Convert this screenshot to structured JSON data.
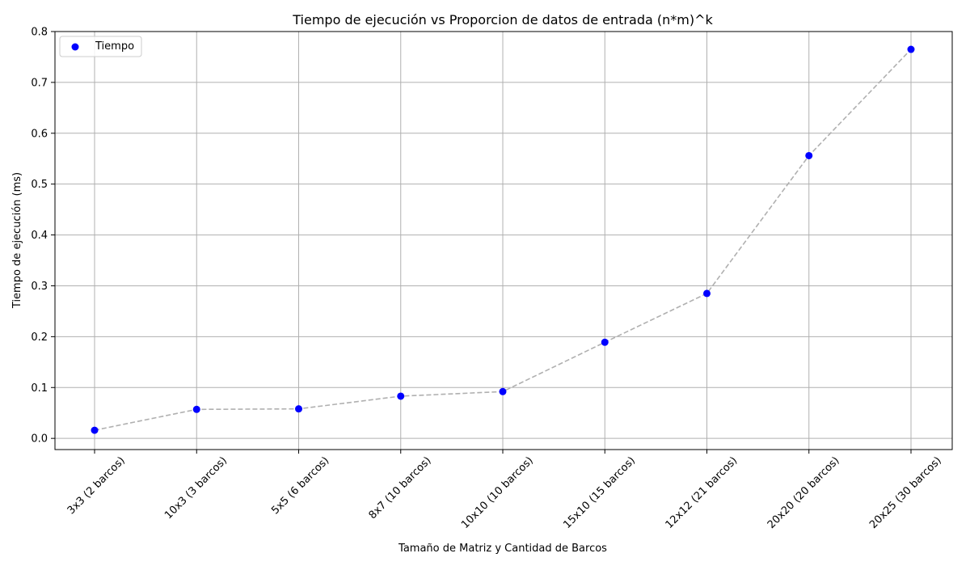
{
  "chart_data": {
    "type": "scatter",
    "title": "Tiempo de ejecución vs Proporcion de datos de entrada (n*m)^k",
    "xlabel": "Tamaño de Matriz y Cantidad de Barcos",
    "ylabel": "Tiempo de ejecución (ms)",
    "categories": [
      "3x3 (2 barcos)",
      "10x3 (3 barcos)",
      "5x5 (6 barcos)",
      "8x7 (10 barcos)",
      "10x10 (10 barcos)",
      "15x10 (15 barcos)",
      "12x12 (21 barcos)",
      "20x20 (20 barcos)",
      "20x25 (30 barcos)"
    ],
    "series": [
      {
        "name": "Tiempo",
        "values": [
          0.016,
          0.057,
          0.058,
          0.083,
          0.092,
          0.189,
          0.285,
          0.556,
          0.765
        ],
        "color": "#0000ff",
        "connector": "dashed",
        "connector_color": "#b0b0b0"
      }
    ],
    "ylim": [
      -0.022,
      0.8
    ],
    "yticks": [
      0.0,
      0.1,
      0.2,
      0.3,
      0.4,
      0.5,
      0.6,
      0.7,
      0.8
    ],
    "ytick_labels": [
      "0.0",
      "0.1",
      "0.2",
      "0.3",
      "0.4",
      "0.5",
      "0.6",
      "0.7",
      "0.8"
    ],
    "grid": true,
    "legend": "top-left"
  }
}
